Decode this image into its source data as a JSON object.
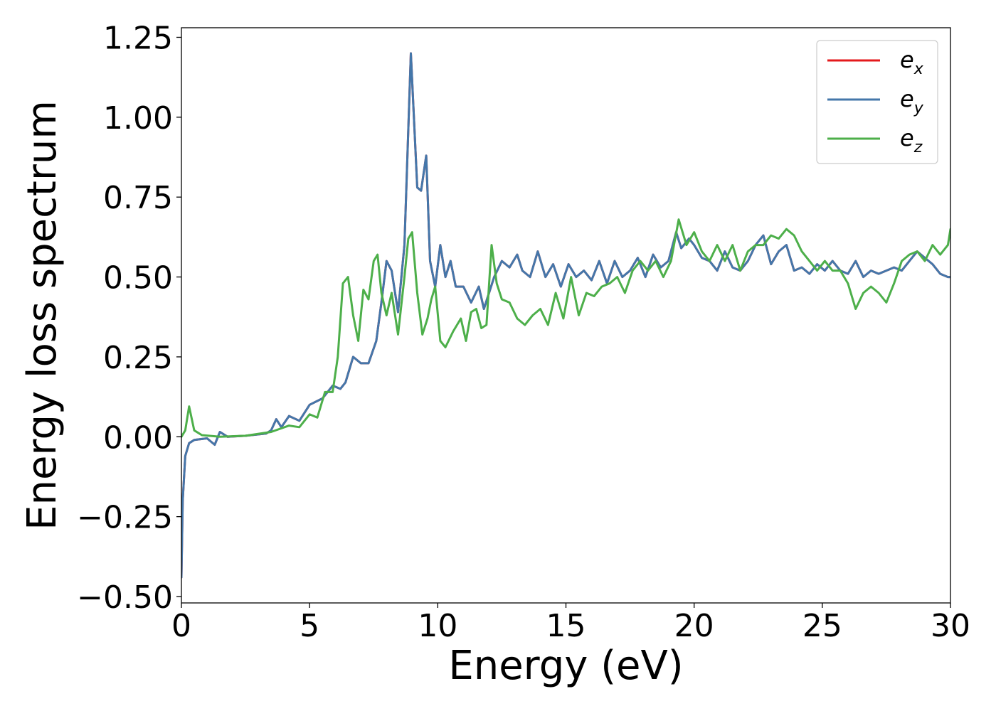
{
  "chart_data": {
    "type": "line",
    "title": "",
    "xlabel": "Energy (eV)",
    "ylabel": "Energy loss spectrum",
    "xlim": [
      0,
      30
    ],
    "ylim": [
      -0.52,
      1.28
    ],
    "xticks": [
      0,
      5,
      10,
      15,
      20,
      25,
      30
    ],
    "xtick_labels": [
      "0",
      "5",
      "10",
      "15",
      "20",
      "25",
      "30"
    ],
    "yticks": [
      -0.5,
      -0.25,
      0.0,
      0.25,
      0.5,
      0.75,
      1.0,
      1.25
    ],
    "ytick_labels": [
      "−0.50",
      "−0.25",
      "0.00",
      "0.25",
      "0.50",
      "0.75",
      "1.00",
      "1.25"
    ],
    "grid": false,
    "legend_position": "top-right",
    "series": [
      {
        "name": "e_x",
        "legend_main": "e",
        "legend_sub": "x",
        "color": "#e41a1c",
        "x": [
          0.0,
          0.05,
          0.15,
          0.3,
          0.5,
          1.0,
          1.3,
          1.5,
          1.8,
          2.5,
          3.3,
          3.5,
          3.7,
          3.9,
          4.2,
          4.6,
          5.0,
          5.5,
          5.9,
          6.2,
          6.4,
          6.7,
          7.0,
          7.3,
          7.6,
          7.8,
          8.0,
          8.2,
          8.45,
          8.7,
          8.95,
          9.2,
          9.35,
          9.55,
          9.7,
          9.9,
          10.1,
          10.3,
          10.5,
          10.7,
          11.0,
          11.3,
          11.6,
          11.8,
          12.0,
          12.2,
          12.5,
          12.8,
          13.1,
          13.3,
          13.6,
          13.9,
          14.2,
          14.5,
          14.8,
          15.1,
          15.4,
          15.7,
          16.0,
          16.3,
          16.6,
          16.9,
          17.2,
          17.5,
          17.8,
          18.1,
          18.4,
          18.7,
          19.0,
          19.3,
          19.5,
          19.8,
          20.0,
          20.3,
          20.6,
          20.9,
          21.2,
          21.5,
          21.8,
          22.1,
          22.4,
          22.7,
          23.0,
          23.3,
          23.6,
          23.9,
          24.2,
          24.5,
          24.8,
          25.1,
          25.4,
          25.7,
          26.0,
          26.3,
          26.6,
          26.9,
          27.2,
          27.5,
          27.8,
          28.1,
          28.4,
          28.7,
          29.0,
          29.3,
          29.6,
          29.9,
          30.0
        ],
        "y": [
          -0.44,
          -0.2,
          -0.06,
          -0.02,
          -0.01,
          -0.005,
          -0.025,
          0.015,
          0.0,
          0.003,
          0.01,
          0.02,
          0.055,
          0.03,
          0.065,
          0.05,
          0.1,
          0.12,
          0.16,
          0.15,
          0.17,
          0.25,
          0.23,
          0.23,
          0.3,
          0.42,
          0.55,
          0.52,
          0.39,
          0.6,
          1.2,
          0.78,
          0.77,
          0.88,
          0.55,
          0.47,
          0.6,
          0.5,
          0.55,
          0.47,
          0.47,
          0.42,
          0.47,
          0.4,
          0.45,
          0.5,
          0.55,
          0.53,
          0.57,
          0.52,
          0.5,
          0.58,
          0.5,
          0.54,
          0.47,
          0.54,
          0.5,
          0.52,
          0.49,
          0.55,
          0.48,
          0.55,
          0.5,
          0.52,
          0.56,
          0.5,
          0.57,
          0.53,
          0.55,
          0.64,
          0.59,
          0.62,
          0.6,
          0.56,
          0.55,
          0.52,
          0.58,
          0.53,
          0.52,
          0.55,
          0.6,
          0.63,
          0.54,
          0.58,
          0.6,
          0.52,
          0.53,
          0.51,
          0.54,
          0.52,
          0.55,
          0.52,
          0.51,
          0.55,
          0.5,
          0.52,
          0.51,
          0.52,
          0.53,
          0.52,
          0.55,
          0.58,
          0.56,
          0.54,
          0.51,
          0.5,
          0.5
        ]
      },
      {
        "name": "e_y",
        "legend_main": "e",
        "legend_sub": "y",
        "color": "#4477aa",
        "x": [
          0.0,
          0.05,
          0.15,
          0.3,
          0.5,
          1.0,
          1.3,
          1.5,
          1.8,
          2.5,
          3.3,
          3.5,
          3.7,
          3.9,
          4.2,
          4.6,
          5.0,
          5.5,
          5.9,
          6.2,
          6.4,
          6.7,
          7.0,
          7.3,
          7.6,
          7.8,
          8.0,
          8.2,
          8.45,
          8.7,
          8.95,
          9.2,
          9.35,
          9.55,
          9.7,
          9.9,
          10.1,
          10.3,
          10.5,
          10.7,
          11.0,
          11.3,
          11.6,
          11.8,
          12.0,
          12.2,
          12.5,
          12.8,
          13.1,
          13.3,
          13.6,
          13.9,
          14.2,
          14.5,
          14.8,
          15.1,
          15.4,
          15.7,
          16.0,
          16.3,
          16.6,
          16.9,
          17.2,
          17.5,
          17.8,
          18.1,
          18.4,
          18.7,
          19.0,
          19.3,
          19.5,
          19.8,
          20.0,
          20.3,
          20.6,
          20.9,
          21.2,
          21.5,
          21.8,
          22.1,
          22.4,
          22.7,
          23.0,
          23.3,
          23.6,
          23.9,
          24.2,
          24.5,
          24.8,
          25.1,
          25.4,
          25.7,
          26.0,
          26.3,
          26.6,
          26.9,
          27.2,
          27.5,
          27.8,
          28.1,
          28.4,
          28.7,
          29.0,
          29.3,
          29.6,
          29.9,
          30.0
        ],
        "y": [
          -0.44,
          -0.2,
          -0.06,
          -0.02,
          -0.01,
          -0.005,
          -0.025,
          0.015,
          0.0,
          0.003,
          0.01,
          0.02,
          0.055,
          0.03,
          0.065,
          0.05,
          0.1,
          0.12,
          0.16,
          0.15,
          0.17,
          0.25,
          0.23,
          0.23,
          0.3,
          0.42,
          0.55,
          0.52,
          0.39,
          0.6,
          1.2,
          0.78,
          0.77,
          0.88,
          0.55,
          0.47,
          0.6,
          0.5,
          0.55,
          0.47,
          0.47,
          0.42,
          0.47,
          0.4,
          0.45,
          0.5,
          0.55,
          0.53,
          0.57,
          0.52,
          0.5,
          0.58,
          0.5,
          0.54,
          0.47,
          0.54,
          0.5,
          0.52,
          0.49,
          0.55,
          0.48,
          0.55,
          0.5,
          0.52,
          0.56,
          0.5,
          0.57,
          0.53,
          0.55,
          0.64,
          0.59,
          0.62,
          0.6,
          0.56,
          0.55,
          0.52,
          0.58,
          0.53,
          0.52,
          0.55,
          0.6,
          0.63,
          0.54,
          0.58,
          0.6,
          0.52,
          0.53,
          0.51,
          0.54,
          0.52,
          0.55,
          0.52,
          0.51,
          0.55,
          0.5,
          0.52,
          0.51,
          0.52,
          0.53,
          0.52,
          0.55,
          0.58,
          0.56,
          0.54,
          0.51,
          0.5,
          0.5
        ]
      },
      {
        "name": "e_z",
        "legend_main": "e",
        "legend_sub": "z",
        "color": "#4daf4a",
        "x": [
          0.0,
          0.15,
          0.3,
          0.5,
          0.8,
          1.5,
          2.5,
          3.5,
          4.2,
          4.6,
          5.0,
          5.3,
          5.6,
          5.9,
          6.1,
          6.3,
          6.5,
          6.7,
          6.9,
          7.1,
          7.3,
          7.5,
          7.65,
          7.8,
          8.0,
          8.2,
          8.45,
          8.7,
          8.85,
          9.0,
          9.2,
          9.4,
          9.6,
          9.75,
          9.9,
          10.1,
          10.3,
          10.6,
          10.9,
          11.1,
          11.3,
          11.5,
          11.7,
          11.9,
          12.1,
          12.3,
          12.5,
          12.8,
          13.1,
          13.4,
          13.7,
          14.0,
          14.3,
          14.6,
          14.9,
          15.2,
          15.5,
          15.8,
          16.1,
          16.4,
          16.7,
          17.0,
          17.3,
          17.6,
          17.9,
          18.2,
          18.5,
          18.8,
          19.1,
          19.4,
          19.7,
          20.0,
          20.3,
          20.6,
          20.9,
          21.2,
          21.5,
          21.8,
          22.1,
          22.4,
          22.7,
          23.0,
          23.3,
          23.6,
          23.9,
          24.2,
          24.5,
          24.8,
          25.1,
          25.4,
          25.7,
          26.0,
          26.3,
          26.6,
          26.9,
          27.2,
          27.5,
          27.8,
          28.1,
          28.4,
          28.7,
          29.0,
          29.3,
          29.6,
          29.9,
          30.0
        ],
        "y": [
          0.0,
          0.02,
          0.095,
          0.02,
          0.005,
          0.0,
          0.003,
          0.015,
          0.035,
          0.03,
          0.07,
          0.06,
          0.14,
          0.14,
          0.25,
          0.48,
          0.5,
          0.38,
          0.3,
          0.46,
          0.43,
          0.55,
          0.57,
          0.45,
          0.38,
          0.45,
          0.32,
          0.5,
          0.62,
          0.64,
          0.45,
          0.32,
          0.37,
          0.43,
          0.47,
          0.3,
          0.28,
          0.33,
          0.37,
          0.3,
          0.39,
          0.4,
          0.34,
          0.35,
          0.6,
          0.48,
          0.43,
          0.42,
          0.37,
          0.35,
          0.38,
          0.4,
          0.35,
          0.45,
          0.37,
          0.5,
          0.38,
          0.45,
          0.44,
          0.47,
          0.48,
          0.5,
          0.45,
          0.52,
          0.55,
          0.52,
          0.55,
          0.5,
          0.55,
          0.68,
          0.6,
          0.64,
          0.58,
          0.55,
          0.6,
          0.55,
          0.6,
          0.52,
          0.58,
          0.6,
          0.6,
          0.63,
          0.62,
          0.65,
          0.63,
          0.58,
          0.55,
          0.52,
          0.55,
          0.52,
          0.52,
          0.48,
          0.4,
          0.45,
          0.47,
          0.45,
          0.42,
          0.48,
          0.55,
          0.57,
          0.58,
          0.55,
          0.6,
          0.57,
          0.6,
          0.65
        ]
      }
    ]
  }
}
